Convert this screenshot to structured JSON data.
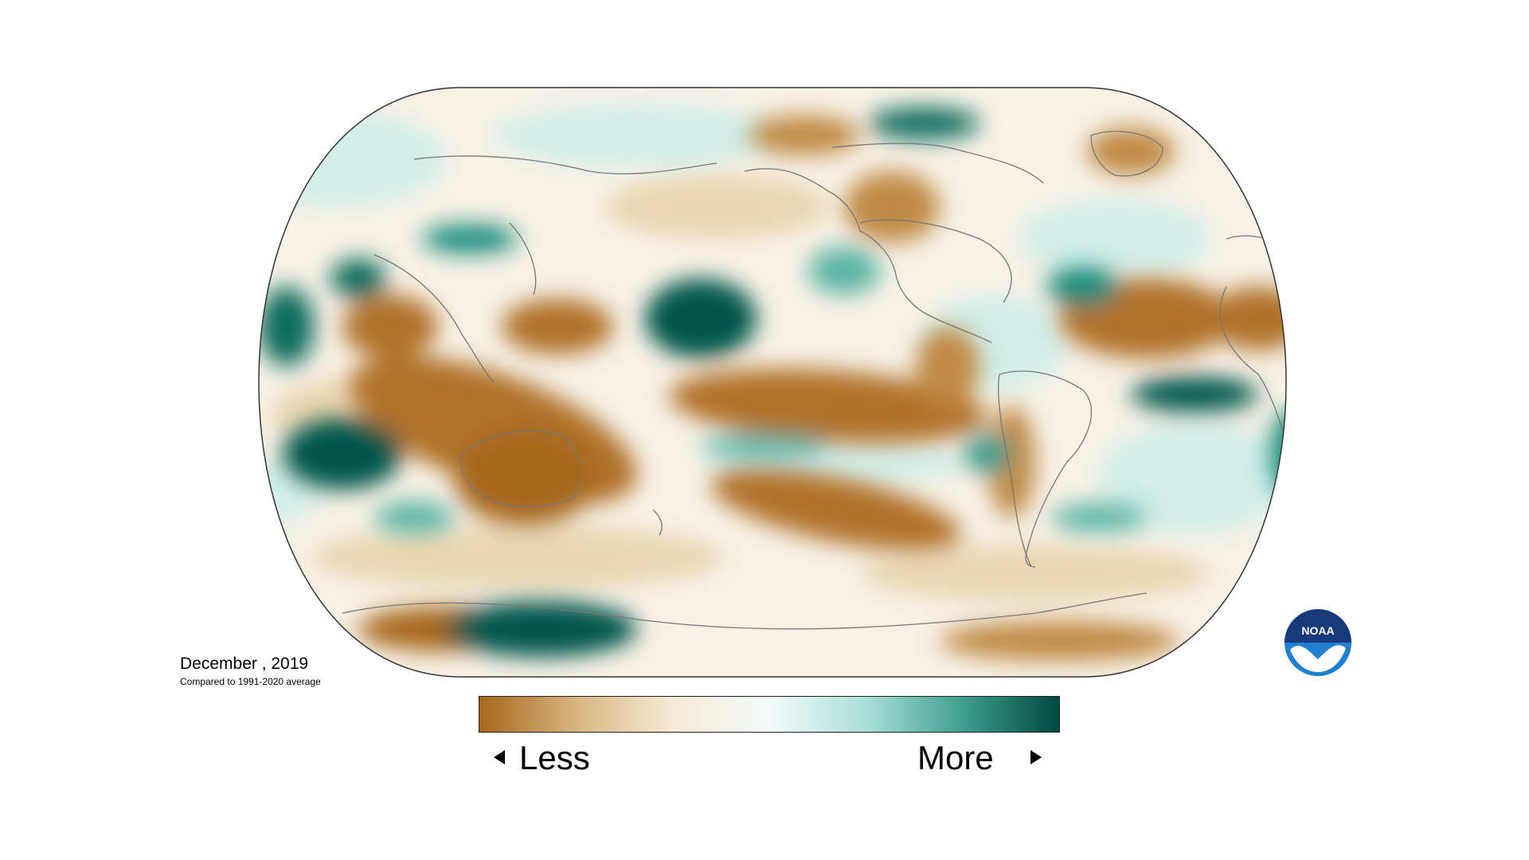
{
  "caption": {
    "date": "December , 2019",
    "subtitle": "Compared to 1991-2020 average"
  },
  "legend": {
    "less_label": "Less",
    "more_label": "More",
    "colors": [
      "#a6671b",
      "#d8b57f",
      "#f5ead6",
      "#f3fbfa",
      "#a9dfd7",
      "#3f9f8e",
      "#004a40"
    ]
  },
  "logo": {
    "text": "NOAA"
  },
  "palette": {
    "dry_strong": "#a6671b",
    "dry": "#d8b57f",
    "dry_light": "#f1e1c3",
    "wet_light": "#cdeee9",
    "wet": "#5cb5a6",
    "wet_strong": "#00564b",
    "coastline": "#777777"
  }
}
